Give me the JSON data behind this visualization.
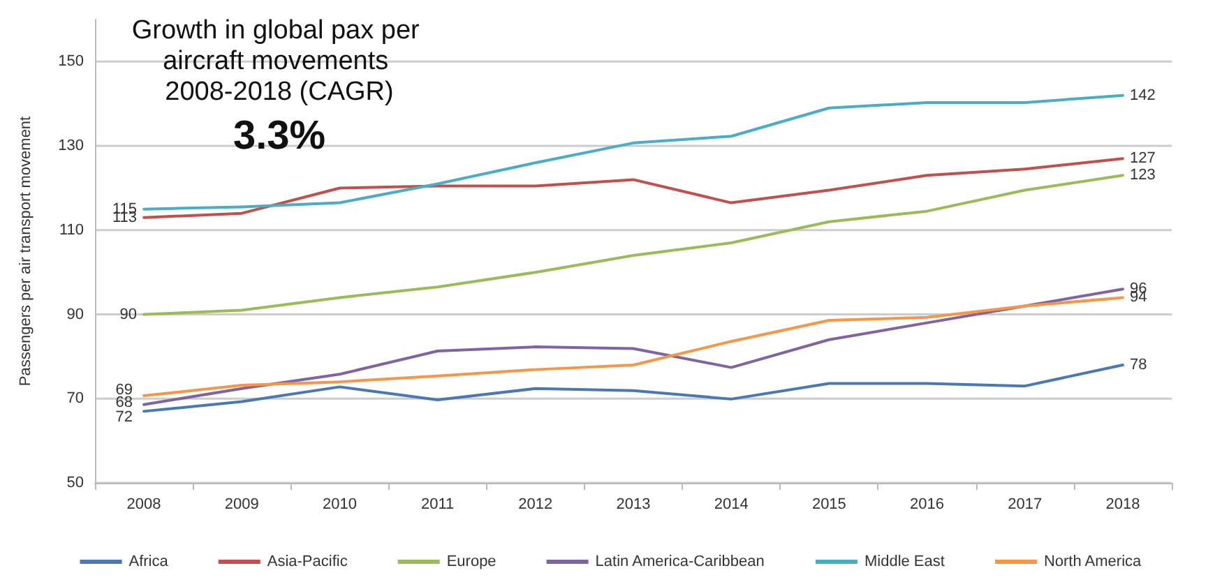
{
  "chart_data": {
    "type": "line",
    "title": "Growth in global pax per aircraft movements 2008-2018 (CAGR)",
    "subtitle": "3.3%",
    "ylabel": "Passengers per air transport movement",
    "categories": [
      "2008",
      "2009",
      "2010",
      "2011",
      "2012",
      "2013",
      "2014",
      "2015",
      "2016",
      "2017",
      "2018"
    ],
    "ylim": [
      50,
      160
    ],
    "yticks": [
      50,
      70,
      90,
      110,
      130,
      150
    ],
    "grid": "y",
    "legend": "bottom",
    "marker": "none",
    "line_style": "solid",
    "series": [
      {
        "name": "Africa",
        "color": "#4a78b5",
        "values": [
          67,
          69.3,
          72.8,
          69.7,
          72.4,
          71.9,
          69.9,
          73.6,
          73.6,
          73,
          78
        ],
        "value_labels": [
          null,
          null,
          null,
          null,
          null,
          null,
          null,
          null,
          null,
          null,
          "78"
        ]
      },
      {
        "name": "Asia-Pacific",
        "color": "#c0504d",
        "values": [
          113,
          114,
          120,
          120.5,
          120.5,
          122,
          116.5,
          119.5,
          123,
          124.5,
          127
        ],
        "value_labels": [
          "113",
          null,
          null,
          null,
          null,
          null,
          null,
          null,
          null,
          null,
          "127"
        ]
      },
      {
        "name": "Europe",
        "color": "#9bbb59",
        "values": [
          90,
          91,
          94,
          96.5,
          100,
          104,
          107,
          112,
          114.5,
          119.5,
          123
        ],
        "value_labels": [
          "90",
          null,
          null,
          null,
          null,
          null,
          null,
          null,
          null,
          null,
          "123"
        ]
      },
      {
        "name": "Latin America-Caribbean",
        "color": "#8064a2",
        "values": [
          68.6,
          72.4,
          75.8,
          81.3,
          82.3,
          81.9,
          77.4,
          84,
          88,
          92,
          96
        ],
        "value_labels": [
          null,
          null,
          null,
          null,
          null,
          null,
          null,
          null,
          null,
          null,
          "96"
        ]
      },
      {
        "name": "Middle East",
        "color": "#4bacc6",
        "values": [
          115,
          115.5,
          116.5,
          121,
          126,
          130.7,
          132.3,
          139,
          140.3,
          140.3,
          142
        ],
        "value_labels": [
          "115",
          null,
          null,
          null,
          null,
          null,
          null,
          null,
          null,
          null,
          "142"
        ]
      },
      {
        "name": "North America",
        "color": "#f79646",
        "values": [
          70.7,
          73.2,
          74,
          75.4,
          76.9,
          78,
          83.6,
          88.6,
          89.3,
          92,
          94
        ],
        "value_labels": [
          null,
          null,
          null,
          null,
          null,
          null,
          null,
          null,
          null,
          null,
          "94"
        ]
      }
    ],
    "annotations": [
      {
        "text": "69",
        "x": "2008",
        "y": 72
      },
      {
        "text": "68",
        "x": "2008",
        "y": 69
      },
      {
        "text": "72",
        "x": "2008",
        "y": 65.5
      }
    ]
  }
}
